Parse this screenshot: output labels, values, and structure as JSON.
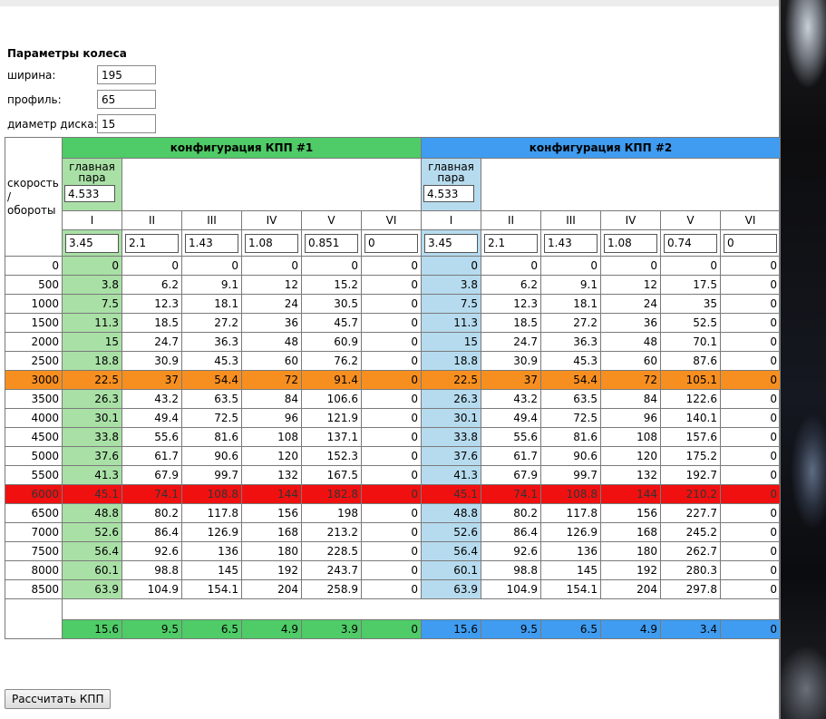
{
  "wheel": {
    "title": "Параметры колеса",
    "width_label": "ширина:",
    "width_value": "195",
    "profile_label": "профиль:",
    "profile_value": "65",
    "diameter_label": "диаметр диска:",
    "diameter_value": "15"
  },
  "table": {
    "speed_header": "скорость / обороты",
    "config1_title": "конфигурация КПП #1",
    "config2_title": "конфигурация КПП #2",
    "main_pair_label": "главная пара",
    "main_pair1": "4.533",
    "main_pair2": "4.533",
    "gear_names": [
      "I",
      "II",
      "III",
      "IV",
      "V",
      "VI"
    ],
    "ratios1": [
      "3.45",
      "2.1",
      "1.43",
      "1.08",
      "0.851",
      "0"
    ],
    "ratios2": [
      "3.45",
      "2.1",
      "1.43",
      "1.08",
      "0.74",
      "0"
    ],
    "rows": [
      {
        "rpm": "0",
        "c1": [
          "0",
          "0",
          "0",
          "0",
          "0",
          "0"
        ],
        "c2": [
          "0",
          "0",
          "0",
          "0",
          "0",
          "0"
        ]
      },
      {
        "rpm": "500",
        "c1": [
          "3.8",
          "6.2",
          "9.1",
          "12",
          "15.2",
          "0"
        ],
        "c2": [
          "3.8",
          "6.2",
          "9.1",
          "12",
          "17.5",
          "0"
        ]
      },
      {
        "rpm": "1000",
        "c1": [
          "7.5",
          "12.3",
          "18.1",
          "24",
          "30.5",
          "0"
        ],
        "c2": [
          "7.5",
          "12.3",
          "18.1",
          "24",
          "35",
          "0"
        ]
      },
      {
        "rpm": "1500",
        "c1": [
          "11.3",
          "18.5",
          "27.2",
          "36",
          "45.7",
          "0"
        ],
        "c2": [
          "11.3",
          "18.5",
          "27.2",
          "36",
          "52.5",
          "0"
        ]
      },
      {
        "rpm": "2000",
        "c1": [
          "15",
          "24.7",
          "36.3",
          "48",
          "60.9",
          "0"
        ],
        "c2": [
          "15",
          "24.7",
          "36.3",
          "48",
          "70.1",
          "0"
        ]
      },
      {
        "rpm": "2500",
        "c1": [
          "18.8",
          "30.9",
          "45.3",
          "60",
          "76.2",
          "0"
        ],
        "c2": [
          "18.8",
          "30.9",
          "45.3",
          "60",
          "87.6",
          "0"
        ]
      },
      {
        "rpm": "3000",
        "c1": [
          "22.5",
          "37",
          "54.4",
          "72",
          "91.4",
          "0"
        ],
        "c2": [
          "22.5",
          "37",
          "54.4",
          "72",
          "105.1",
          "0"
        ],
        "highlight": "orange"
      },
      {
        "rpm": "3500",
        "c1": [
          "26.3",
          "43.2",
          "63.5",
          "84",
          "106.6",
          "0"
        ],
        "c2": [
          "26.3",
          "43.2",
          "63.5",
          "84",
          "122.6",
          "0"
        ]
      },
      {
        "rpm": "4000",
        "c1": [
          "30.1",
          "49.4",
          "72.5",
          "96",
          "121.9",
          "0"
        ],
        "c2": [
          "30.1",
          "49.4",
          "72.5",
          "96",
          "140.1",
          "0"
        ]
      },
      {
        "rpm": "4500",
        "c1": [
          "33.8",
          "55.6",
          "81.6",
          "108",
          "137.1",
          "0"
        ],
        "c2": [
          "33.8",
          "55.6",
          "81.6",
          "108",
          "157.6",
          "0"
        ]
      },
      {
        "rpm": "5000",
        "c1": [
          "37.6",
          "61.7",
          "90.6",
          "120",
          "152.3",
          "0"
        ],
        "c2": [
          "37.6",
          "61.7",
          "90.6",
          "120",
          "175.2",
          "0"
        ]
      },
      {
        "rpm": "5500",
        "c1": [
          "41.3",
          "67.9",
          "99.7",
          "132",
          "167.5",
          "0"
        ],
        "c2": [
          "41.3",
          "67.9",
          "99.7",
          "132",
          "192.7",
          "0"
        ]
      },
      {
        "rpm": "6000",
        "c1": [
          "45.1",
          "74.1",
          "108.8",
          "144",
          "182.8",
          "0"
        ],
        "c2": [
          "45.1",
          "74.1",
          "108.8",
          "144",
          "210.2",
          "0"
        ],
        "highlight": "red"
      },
      {
        "rpm": "6500",
        "c1": [
          "48.8",
          "80.2",
          "117.8",
          "156",
          "198",
          "0"
        ],
        "c2": [
          "48.8",
          "80.2",
          "117.8",
          "156",
          "227.7",
          "0"
        ]
      },
      {
        "rpm": "7000",
        "c1": [
          "52.6",
          "86.4",
          "126.9",
          "168",
          "213.2",
          "0"
        ],
        "c2": [
          "52.6",
          "86.4",
          "126.9",
          "168",
          "245.2",
          "0"
        ]
      },
      {
        "rpm": "7500",
        "c1": [
          "56.4",
          "92.6",
          "136",
          "180",
          "228.5",
          "0"
        ],
        "c2": [
          "56.4",
          "92.6",
          "136",
          "180",
          "262.7",
          "0"
        ]
      },
      {
        "rpm": "8000",
        "c1": [
          "60.1",
          "98.8",
          "145",
          "192",
          "243.7",
          "0"
        ],
        "c2": [
          "60.1",
          "98.8",
          "145",
          "192",
          "280.3",
          "0"
        ]
      },
      {
        "rpm": "8500",
        "c1": [
          "63.9",
          "104.9",
          "154.1",
          "204",
          "258.9",
          "0"
        ],
        "c2": [
          "63.9",
          "104.9",
          "154.1",
          "204",
          "297.8",
          "0"
        ]
      }
    ],
    "totals1": [
      "15.6",
      "9.5",
      "6.5",
      "4.9",
      "3.9",
      "0"
    ],
    "totals2": [
      "15.6",
      "9.5",
      "6.5",
      "4.9",
      "3.4",
      "0"
    ]
  },
  "buttons": {
    "calculate": "Рассчитать КПП"
  },
  "colors": {
    "config1": "#4fcb67",
    "config2": "#3f9cf0",
    "first_gear1": "#a9e0a6",
    "first_gear2": "#b6dbee",
    "highlight_orange": "#f78f20",
    "highlight_red": "#f01010"
  }
}
